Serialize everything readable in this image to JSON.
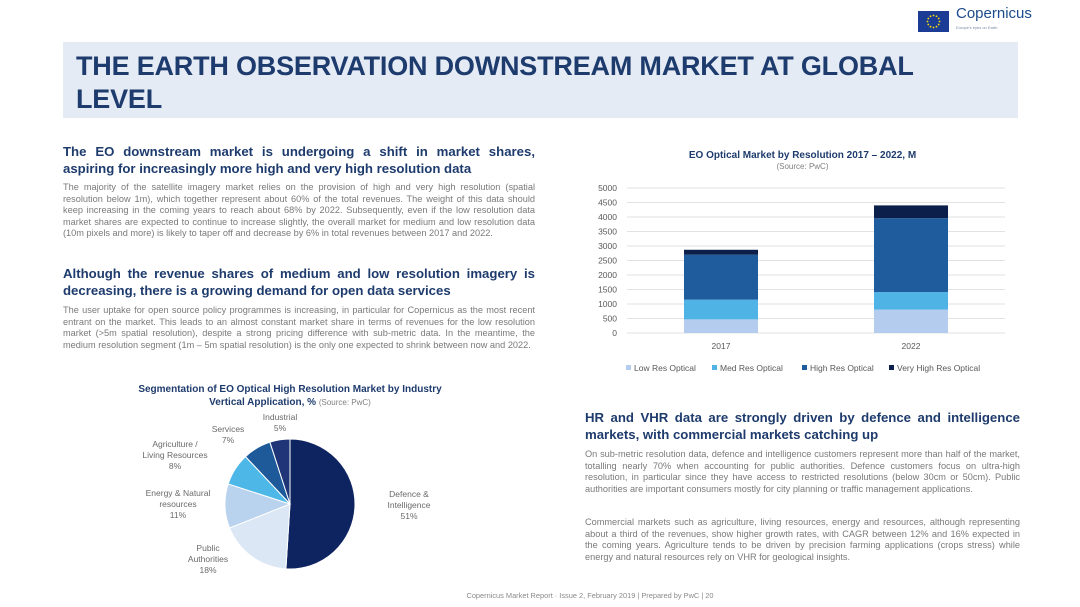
{
  "header": {
    "brand": "Copernicus",
    "brand_sub": "Europe's eyes on Earth",
    "eu_flag_icon": "eu-flag-icon"
  },
  "title": "THE EARTH OBSERVATION DOWNSTREAM MARKET AT GLOBAL LEVEL",
  "left": {
    "heading1": "The EO downstream market is undergoing a shift in market shares, aspiring for increasingly more high and very high resolution data",
    "para1": "The majority of the satellite imagery market relies on the provision of high and very high resolution (spatial resolution below 1m), which together represent about 60% of the total revenues. The weight of this data should keep increasing in the coming years to reach about 68% by 2022. Subsequently, even if the low resolution data market shares are expected to continue to increase slightly, the overall market for medium and low resolution data (10m pixels and more) is likely to taper off and decrease by 6% in total revenues between 2017 and  2022.",
    "heading2": "Although the revenue shares of medium and low resolution imagery is decreasing, there is a growing demand for open data services",
    "para2": "The user uptake for open source policy programmes is increasing, in particular for Copernicus as the most recent entrant on the market. This leads to an almost constant market share in terms of revenues for the low resolution market (>5m spatial resolution), despite a strong pricing difference with sub-metric data. In the meantime, the medium resolution segment (1m – 5m spatial resolution) is the only one expected to shrink between now and 2022."
  },
  "right": {
    "heading3": "HR and VHR data are strongly driven by defence and intelligence markets, with commercial markets catching up",
    "para3": "On sub-metric resolution data, defence and intelligence customers represent more than half of the market, totalling nearly 70% when accounting for public authorities. Defence customers focus on ultra-high resolution, in particular since they have access to restricted resolutions (below 30cm or 50cm). Public authorities are important consumers mostly for city planning or traffic management applications.",
    "para4": "Commercial markets such as agriculture, living resources, energy and resources, although representing about a third of the revenues, show higher growth rates, with CAGR between 12% and 16% expected in the coming years. Agriculture tends to be driven by precision farming applications (crops stress) while energy and natural resources rely on VHR for geological insights."
  },
  "bar_chart": {
    "title": "EO Optical Market by Resolution 2017 – 2022, M",
    "source": "(Source: PwC)"
  },
  "pie_chart": {
    "title": "Segmentation of EO Optical High Resolution Market by Industry Vertical Application, %",
    "source": "(Source: PwC)"
  },
  "chart_data": [
    {
      "type": "bar",
      "stacked": true,
      "title": "EO Optical Market by Resolution 2017 – 2022, M",
      "subtitle": "(Source: PwC)",
      "categories": [
        "2017",
        "2022"
      ],
      "ylim": [
        0,
        5000
      ],
      "yticks": [
        0,
        500,
        1000,
        1500,
        2000,
        2500,
        3000,
        3500,
        4000,
        4500,
        5000
      ],
      "grid": true,
      "legend": "bottom",
      "series": [
        {
          "name": "Low Res Optical",
          "color": "#b4cdee",
          "values": [
            470,
            810
          ]
        },
        {
          "name": "Med Res Optical",
          "color": "#4fb3e6",
          "values": [
            680,
            600
          ]
        },
        {
          "name": "High Res Optical",
          "color": "#1f5c9e",
          "values": [
            1550,
            2550
          ]
        },
        {
          "name": "Very High Res Optical",
          "color": "#0b1f4a",
          "values": [
            170,
            440
          ]
        }
      ]
    },
    {
      "type": "pie",
      "title": "Segmentation of EO Optical High Resolution Market by Industry Vertical Application, %",
      "subtitle": "(Source: PwC)",
      "slices": [
        {
          "label": "Defence & Intelligence",
          "lines": [
            "Defence &",
            "Intelligence",
            "51%"
          ],
          "value": 51,
          "color": "#0e2461"
        },
        {
          "label": "Public Authorities",
          "lines": [
            "Public",
            "Authorities",
            "18%"
          ],
          "value": 18,
          "color": "#dce7f5"
        },
        {
          "label": "Energy & Natural resources",
          "lines": [
            "Energy & Natural",
            "resources",
            "11%"
          ],
          "value": 11,
          "color": "#b9d2ee"
        },
        {
          "label": "Agriculture / Living Resources",
          "lines": [
            "Agriculture /",
            "Living Resources",
            "8%"
          ],
          "value": 8,
          "color": "#4db8e8"
        },
        {
          "label": "Services",
          "lines": [
            "Services",
            "7%"
          ],
          "value": 7,
          "color": "#1e5a9a"
        },
        {
          "label": "Industrial",
          "lines": [
            "Industrial",
            "5%"
          ],
          "value": 5,
          "color": "#1f3577"
        }
      ]
    }
  ],
  "footer": "Copernicus Market Report · Issue 2, February 2019 | Prepared by PwC |     20"
}
